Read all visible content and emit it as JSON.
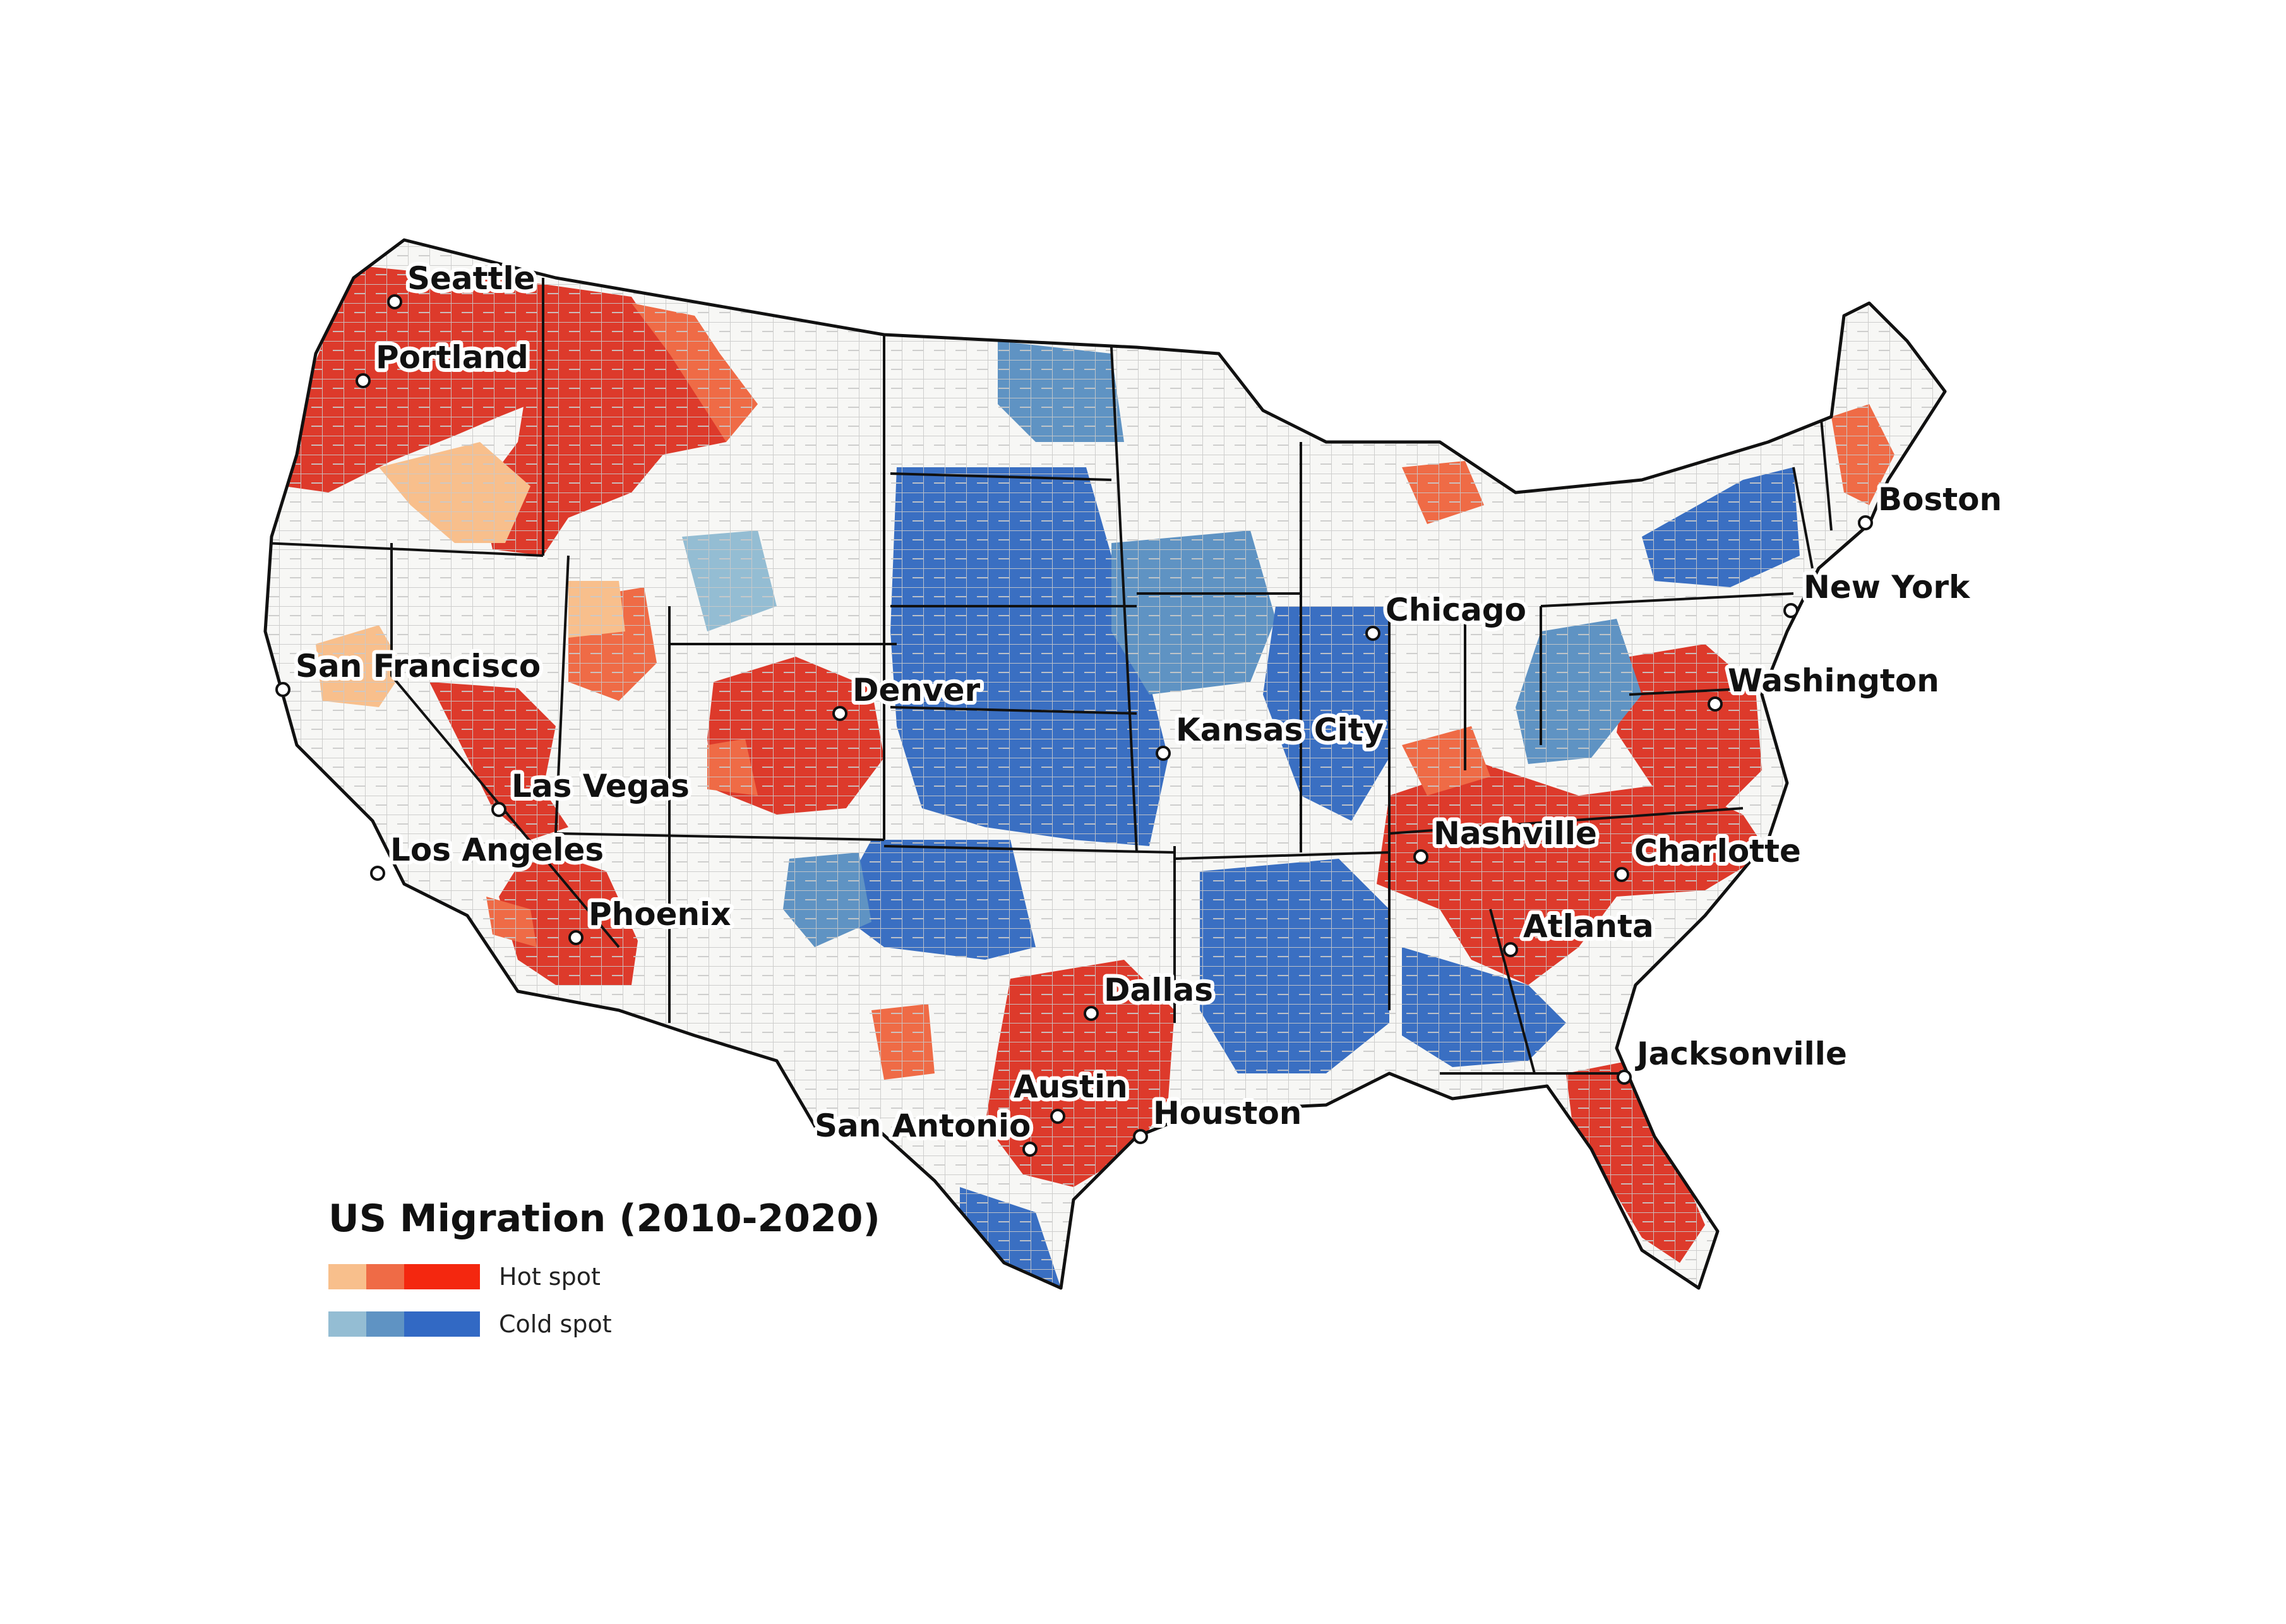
{
  "legend": {
    "title": "US Migration (2010-2020)",
    "hot_label": "Hot spot",
    "cold_label": "Cold spot",
    "hot_colors": [
      "#f8bf8c",
      "#ef6b46",
      "#f4270f"
    ],
    "cold_colors": [
      "#94bdd3",
      "#5f93c3",
      "#3269c4"
    ]
  },
  "colors": {
    "land": "#f7f7f5",
    "county_lines": "#c9c9c9",
    "state_lines": "#111111",
    "hot_light": "#f8bf8c",
    "hot_mid": "#ef6b46",
    "hot_strong": "#dd3a2b",
    "cold_light": "#94bdd3",
    "cold_mid": "#5f93c3",
    "cold_strong": "#3a6fc2"
  },
  "cities": [
    {
      "name": "Seattle"
    },
    {
      "name": "Portland"
    },
    {
      "name": "San Francisco"
    },
    {
      "name": "Las Vegas"
    },
    {
      "name": "Los Angeles"
    },
    {
      "name": "Phoenix"
    },
    {
      "name": "Denver"
    },
    {
      "name": "Kansas City"
    },
    {
      "name": "Dallas"
    },
    {
      "name": "Austin"
    },
    {
      "name": "San Antonio"
    },
    {
      "name": "Houston"
    },
    {
      "name": "Chicago"
    },
    {
      "name": "Nashville"
    },
    {
      "name": "Atlanta"
    },
    {
      "name": "Charlotte"
    },
    {
      "name": "Washington"
    },
    {
      "name": "New York"
    },
    {
      "name": "Boston"
    },
    {
      "name": "Jacksonville"
    }
  ]
}
